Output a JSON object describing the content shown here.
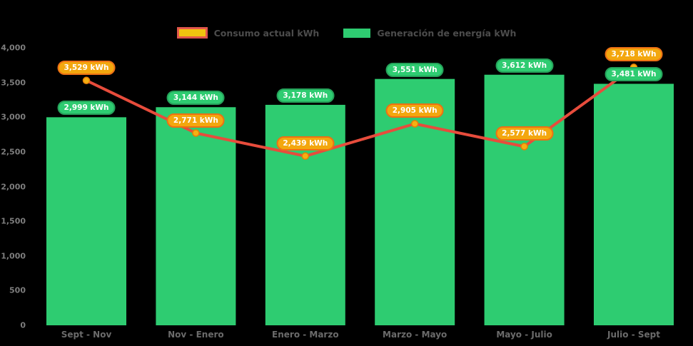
{
  "colors": {
    "background": "#000000",
    "bar_green": "#2ecc71",
    "bar_label_border": "#25a25a",
    "line_red": "#e74c3c",
    "marker_fill": "#f5b013",
    "marker_stroke": "#e87e04",
    "line_label_bg": "#f3a70e",
    "line_label_border": "#ed7014",
    "legend_swatch_yellow": "#f1c40f",
    "legend_swatch_border": "#e2574c",
    "axis_text": "#7d7d7d",
    "x_axis_text": "#6b6b6b",
    "legend_text": "#4c4c4c",
    "value_text": "#ffffff"
  },
  "legend": {
    "items": [
      {
        "label": "Consumo actual kWh",
        "swatch": "yellow-red-line-swatch"
      },
      {
        "label": "Generación de energía kWh",
        "swatch": "green-bar-swatch"
      }
    ]
  },
  "chart_data": {
    "type": "bar",
    "subtype": "bar+line combo",
    "title": "",
    "xlabel": "",
    "ylabel": "",
    "categories": [
      "Sept - Nov",
      "Nov - Enero",
      "Enero - Marzo",
      "Marzo - Mayo",
      "Mayo - Julio",
      "Julio - Sept"
    ],
    "series": [
      {
        "name": "Generación de energía kWh",
        "type": "bar",
        "color": "#2ecc71",
        "values": [
          2999,
          3144,
          3178,
          3551,
          3612,
          3481
        ],
        "value_labels": [
          "2,999 kWh",
          "3,144 kWh",
          "3,178 kWh",
          "3,551 kWh",
          "3,612 kWh",
          "3,481 kWh"
        ]
      },
      {
        "name": "Consumo actual kWh",
        "type": "line",
        "color": "#e74c3c",
        "values": [
          3529,
          2771,
          2439,
          2905,
          2577,
          3718
        ],
        "value_labels": [
          "3,529 kWh",
          "2,771 kWh",
          "2,439 kWh",
          "2,905 kWh",
          "2,577 kWh",
          "3,718 kWh"
        ]
      }
    ],
    "ylim": [
      0,
      4000
    ],
    "ytick_step": 500,
    "yticks": [
      {
        "value": 0,
        "label": "0"
      },
      {
        "value": 500,
        "label": "500"
      },
      {
        "value": 1000,
        "label": "1,000"
      },
      {
        "value": 1500,
        "label": "1,500"
      },
      {
        "value": 2000,
        "label": "2,000"
      },
      {
        "value": 2500,
        "label": "2,500"
      },
      {
        "value": 3000,
        "label": "3,000"
      },
      {
        "value": 3500,
        "label": "3,500"
      },
      {
        "value": 4000,
        "label": "4,000"
      }
    ],
    "grid": false,
    "legend_position": "top-center"
  }
}
